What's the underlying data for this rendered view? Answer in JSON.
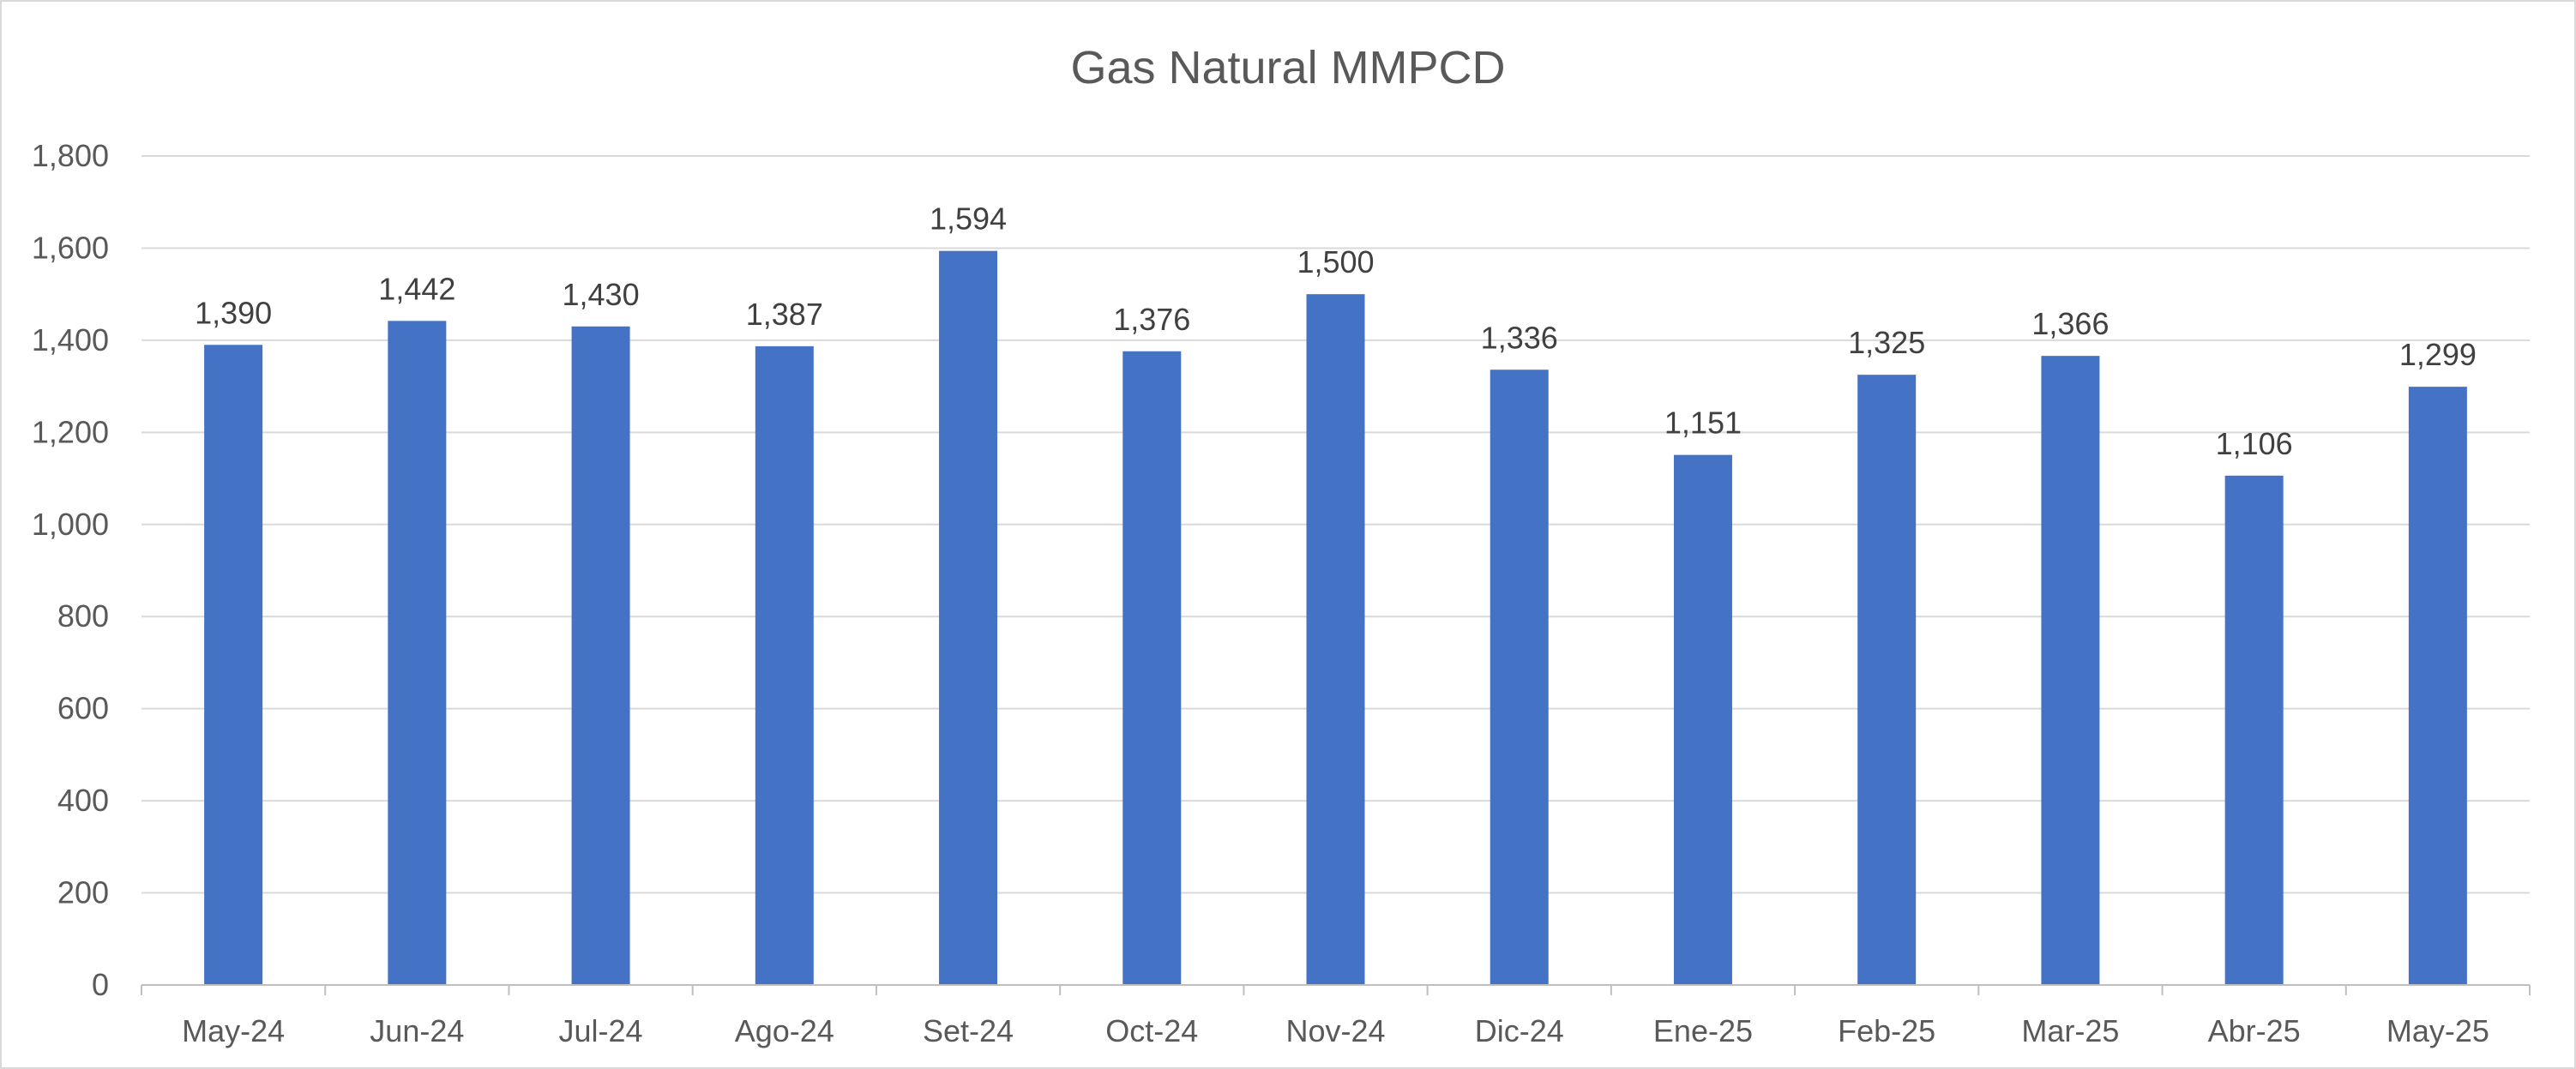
{
  "chart_data": {
    "type": "bar",
    "title": "Gas Natural MMPCD",
    "xlabel": "",
    "ylabel": "",
    "categories": [
      "May-24",
      "Jun-24",
      "Jul-24",
      "Ago-24",
      "Set-24",
      "Oct-24",
      "Nov-24",
      "Dic-24",
      "Ene-25",
      "Feb-25",
      "Mar-25",
      "Abr-25",
      "May-25"
    ],
    "values": [
      1390,
      1442,
      1430,
      1387,
      1594,
      1376,
      1500,
      1336,
      1151,
      1325,
      1366,
      1106,
      1299
    ],
    "value_labels": [
      "1,390",
      "1,442",
      "1,430",
      "1,387",
      "1,594",
      "1,376",
      "1,500",
      "1,336",
      "1,151",
      "1,325",
      "1,366",
      "1,106",
      "1,299"
    ],
    "ylim": [
      0,
      1800
    ],
    "yticks": [
      0,
      200,
      400,
      600,
      800,
      1000,
      1200,
      1400,
      1600,
      1800
    ],
    "ytick_labels": [
      "0",
      "200",
      "400",
      "600",
      "800",
      "1,000",
      "1,200",
      "1,400",
      "1,600",
      "1,800"
    ],
    "grid": true,
    "legend": "none",
    "bar_color": "#4472C4"
  }
}
